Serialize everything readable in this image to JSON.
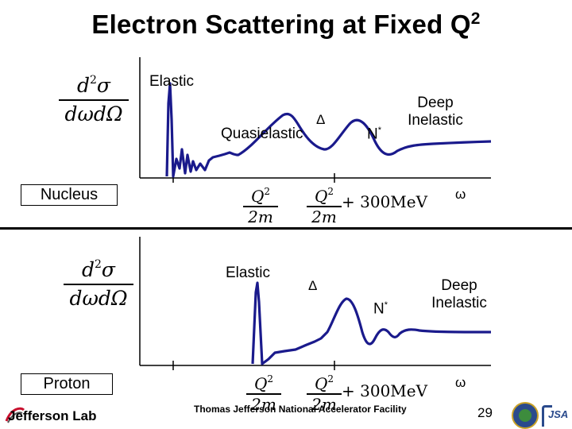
{
  "slide": {
    "title": "Electron Scattering at Fixed Q",
    "title_sup": "2",
    "page_number": "29"
  },
  "cross_section": {
    "numerator": "d",
    "numerator_sup": "2",
    "numerator_sigma": "σ",
    "denominator": "dωdΩ"
  },
  "nucleus_panel": {
    "box_label": "Nucleus",
    "peak_labels": {
      "elastic": "Elastic",
      "quasielastic": "Quasielastic",
      "delta": "Δ",
      "nstar": "N",
      "nstar_sup": "*",
      "deep_inelastic_line1": "Deep",
      "deep_inelastic_line2": "Inelastic"
    },
    "axis": {
      "tick1_num": "Q",
      "tick1_sup": "2",
      "tick1_den": "2m",
      "tick2_num": "Q",
      "tick2_sup": "2",
      "tick2_den": "2m",
      "tick2_suffix": "+ 300MeV",
      "end_label": "ω"
    }
  },
  "proton_panel": {
    "box_label": "Proton",
    "peak_labels": {
      "elastic": "Elastic",
      "delta": "Δ",
      "nstar": "N",
      "nstar_sup": "*",
      "deep_inelastic_line1": "Deep",
      "deep_inelastic_line2": "Inelastic"
    },
    "axis": {
      "tick1_num": "Q",
      "tick1_sup": "2",
      "tick1_den": "2m",
      "tick2_num": "Q",
      "tick2_sup": "2",
      "tick2_den": "2m",
      "tick2_suffix": "+ 300MeV",
      "end_label": "ω"
    }
  },
  "footer": {
    "lab_logo_text": "Jefferson Lab",
    "facility_text": "Thomas Jefferson National Accelerator Facility",
    "jsa_text": "JSA"
  },
  "colors": {
    "curve": "#1a1a8c",
    "axis": "#000000",
    "jlab_red": "#c8102e",
    "doe_seal_blue": "#2a4a8c"
  }
}
